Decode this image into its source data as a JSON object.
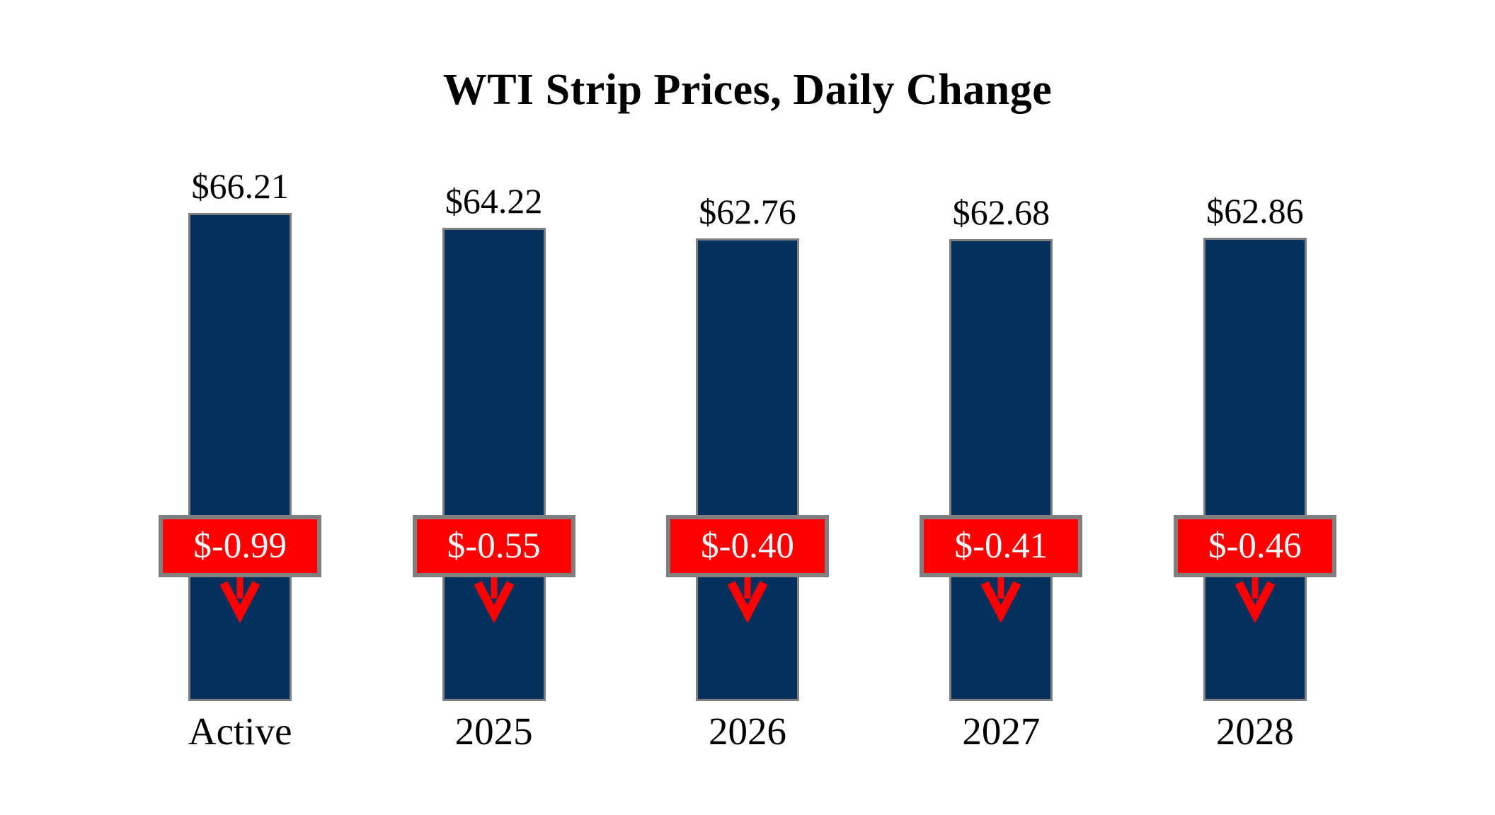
{
  "title": "WTI Strip Prices, Daily Change",
  "colors": {
    "background": "#FFFFFF",
    "bar_fill": "#04305E",
    "bar_border": "#808080",
    "badge_fill": "#FF0000",
    "badge_border": "#808080",
    "badge_text": "#FFFFFF",
    "arrow": "#FF0000",
    "label_text": "#000000"
  },
  "chart_data": {
    "type": "bar",
    "title": "WTI Strip Prices, Daily Change",
    "categories": [
      "Active",
      "2025",
      "2026",
      "2027",
      "2028"
    ],
    "series": [
      {
        "name": "price",
        "values": [
          66.21,
          64.22,
          62.76,
          62.68,
          62.86
        ]
      },
      {
        "name": "daily_change",
        "values": [
          -0.99,
          -0.55,
          -0.4,
          -0.41,
          -0.46
        ]
      }
    ],
    "price_labels": [
      "$66.21",
      "$64.22",
      "$62.76",
      "$62.68",
      "$62.86"
    ],
    "change_labels": [
      "$-0.99",
      "$-0.55",
      "$-0.40",
      "$-0.41",
      "$-0.46"
    ],
    "ylim": [
      0,
      70
    ],
    "grid": false,
    "legend": "none"
  }
}
